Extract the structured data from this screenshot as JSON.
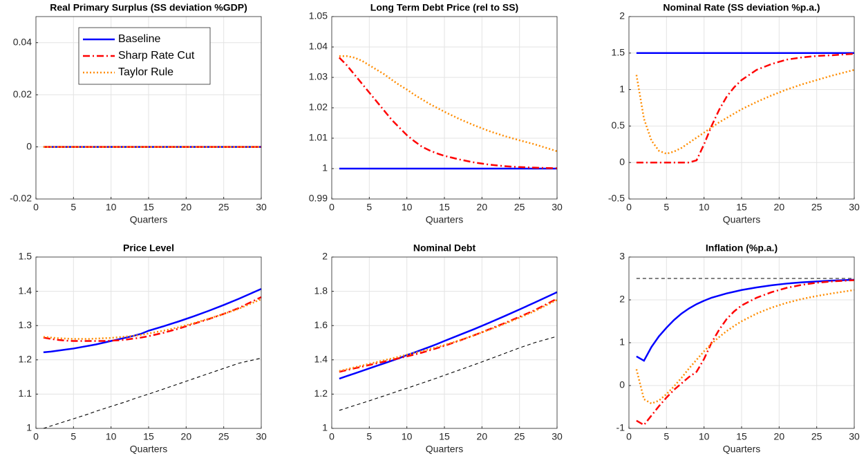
{
  "chart_data": [
    {
      "type": "line",
      "title": "Real Primary Surplus (SS deviation %GDP)",
      "x_label": "Quarters",
      "x": [
        1,
        2,
        3,
        4,
        5,
        6,
        7,
        8,
        9,
        10,
        11,
        12,
        13,
        14,
        15,
        17,
        19,
        21,
        23,
        25,
        27,
        30
      ],
      "xlim": [
        0,
        30
      ],
      "xticks": [
        0,
        5,
        10,
        15,
        20,
        25,
        30
      ],
      "ylim": [
        -0.02,
        0.05
      ],
      "yticks": [
        -0.02,
        0,
        0.02,
        0.04
      ],
      "grid": true,
      "legend": "upper left",
      "series": [
        {
          "name": "Baseline",
          "color": "#0000ff",
          "style": "solid",
          "values": [
            0,
            0,
            0,
            0,
            0,
            0,
            0,
            0,
            0,
            0,
            0,
            0,
            0,
            0,
            0,
            0,
            0,
            0,
            0,
            0,
            0,
            0
          ]
        },
        {
          "name": "Sharp Rate Cut",
          "color": "#ff0000",
          "style": "dashdot",
          "values": [
            0,
            0,
            0,
            0,
            0,
            0,
            0,
            0,
            0,
            0,
            0,
            0,
            0,
            0,
            0,
            0,
            0,
            0,
            0,
            0,
            0,
            0
          ]
        },
        {
          "name": "Taylor Rule",
          "color": "#ff8c00",
          "style": "dotted",
          "values": [
            0,
            0,
            0,
            0,
            0,
            0,
            0,
            0,
            0,
            0,
            0,
            0,
            0,
            0,
            0,
            0,
            0,
            0,
            0,
            0,
            0,
            0
          ]
        }
      ]
    },
    {
      "type": "line",
      "title": "Long Term Debt Price (rel to SS)",
      "x_label": "Quarters",
      "x": [
        1,
        2,
        3,
        4,
        5,
        6,
        7,
        8,
        9,
        10,
        11,
        12,
        13,
        14,
        15,
        17,
        19,
        21,
        23,
        25,
        27,
        30
      ],
      "xlim": [
        0,
        30
      ],
      "xticks": [
        0,
        5,
        10,
        15,
        20,
        25,
        30
      ],
      "ylim": [
        0.99,
        1.05
      ],
      "yticks": [
        0.99,
        1,
        1.01,
        1.02,
        1.03,
        1.04,
        1.05
      ],
      "grid": true,
      "series": [
        {
          "color": "#0000ff",
          "style": "solid",
          "values": [
            1,
            1,
            1,
            1,
            1,
            1,
            1,
            1,
            1,
            1,
            1,
            1,
            1,
            1,
            1,
            1,
            1,
            1,
            1,
            1,
            1,
            1
          ]
        },
        {
          "color": "#ff0000",
          "style": "dashdot",
          "values": [
            1.0365,
            1.034,
            1.031,
            1.028,
            1.025,
            1.022,
            1.019,
            1.016,
            1.0135,
            1.011,
            1.009,
            1.0072,
            1.006,
            1.005,
            1.0042,
            1.003,
            1.002,
            1.0013,
            1.0008,
            1.0005,
            1.0003,
            1.0001
          ]
        },
        {
          "color": "#ff8c00",
          "style": "dotted",
          "values": [
            1.037,
            1.037,
            1.0365,
            1.0355,
            1.034,
            1.0325,
            1.031,
            1.0292,
            1.0275,
            1.026,
            1.0243,
            1.0228,
            1.0213,
            1.02,
            1.0187,
            1.0163,
            1.0142,
            1.0123,
            1.0107,
            1.0093,
            1.008,
            1.0057
          ]
        }
      ]
    },
    {
      "type": "line",
      "title": "Nominal Rate (SS deviation %p.a.)",
      "x_label": "Quarters",
      "x": [
        1,
        2,
        3,
        4,
        5,
        6,
        7,
        8,
        9,
        10,
        11,
        12,
        13,
        14,
        15,
        17,
        19,
        21,
        23,
        25,
        27,
        30
      ],
      "xlim": [
        0,
        30
      ],
      "xticks": [
        0,
        5,
        10,
        15,
        20,
        25,
        30
      ],
      "ylim": [
        -0.5,
        2
      ],
      "yticks": [
        -0.5,
        0,
        0.5,
        1,
        1.5,
        2
      ],
      "grid": true,
      "series": [
        {
          "color": "#0000ff",
          "style": "solid",
          "values": [
            1.5,
            1.5,
            1.5,
            1.5,
            1.5,
            1.5,
            1.5,
            1.5,
            1.5,
            1.5,
            1.5,
            1.5,
            1.5,
            1.5,
            1.5,
            1.5,
            1.5,
            1.5,
            1.5,
            1.5,
            1.5,
            1.5
          ]
        },
        {
          "color": "#ff0000",
          "style": "dashdot",
          "values": [
            0,
            0,
            0,
            0,
            0,
            0,
            0,
            0,
            0.03,
            0.25,
            0.5,
            0.72,
            0.9,
            1.03,
            1.13,
            1.27,
            1.35,
            1.41,
            1.44,
            1.46,
            1.47,
            1.49
          ]
        },
        {
          "color": "#ff8c00",
          "style": "dotted",
          "values": [
            1.2,
            0.6,
            0.3,
            0.16,
            0.12,
            0.15,
            0.2,
            0.27,
            0.34,
            0.41,
            0.48,
            0.55,
            0.61,
            0.67,
            0.73,
            0.83,
            0.92,
            1.0,
            1.07,
            1.13,
            1.19,
            1.27
          ]
        }
      ]
    },
    {
      "type": "line",
      "title": "Price Level",
      "x_label": "Quarters",
      "x": [
        1,
        2,
        3,
        4,
        5,
        6,
        7,
        8,
        9,
        10,
        11,
        12,
        13,
        14,
        15,
        17,
        19,
        21,
        23,
        25,
        27,
        30
      ],
      "xlim": [
        0,
        30
      ],
      "xticks": [
        0,
        5,
        10,
        15,
        20,
        25,
        30
      ],
      "ylim": [
        1,
        1.5
      ],
      "yticks": [
        1,
        1.1,
        1.2,
        1.3,
        1.4,
        1.5
      ],
      "grid": true,
      "series": [
        {
          "color": "#0000ff",
          "style": "solid",
          "values": [
            1.222,
            1.224,
            1.227,
            1.23,
            1.233,
            1.237,
            1.241,
            1.245,
            1.25,
            1.255,
            1.26,
            1.265,
            1.27,
            1.276,
            1.285,
            1.298,
            1.312,
            1.327,
            1.343,
            1.36,
            1.378,
            1.407
          ]
        },
        {
          "color": "#ff0000",
          "style": "dashdot",
          "values": [
            1.265,
            1.261,
            1.258,
            1.256,
            1.255,
            1.255,
            1.255,
            1.255,
            1.255,
            1.256,
            1.257,
            1.259,
            1.262,
            1.265,
            1.269,
            1.279,
            1.291,
            1.305,
            1.319,
            1.334,
            1.351,
            1.383
          ]
        },
        {
          "color": "#ff8c00",
          "style": "dotted",
          "values": [
            1.267,
            1.265,
            1.263,
            1.262,
            1.261,
            1.261,
            1.261,
            1.262,
            1.263,
            1.264,
            1.266,
            1.268,
            1.27,
            1.273,
            1.277,
            1.285,
            1.295,
            1.307,
            1.32,
            1.334,
            1.349,
            1.377
          ]
        },
        {
          "color": "#000000",
          "style": "dashed",
          "values": [
            1.0,
            1.007,
            1.014,
            1.021,
            1.028,
            1.035,
            1.042,
            1.05,
            1.057,
            1.064,
            1.071,
            1.078,
            1.086,
            1.093,
            1.1,
            1.115,
            1.13,
            1.145,
            1.16,
            1.175,
            1.19,
            1.205
          ]
        }
      ]
    },
    {
      "type": "line",
      "title": "Nominal Debt",
      "x_label": "Quarters",
      "x": [
        1,
        2,
        3,
        4,
        5,
        6,
        7,
        8,
        9,
        10,
        11,
        12,
        13,
        14,
        15,
        17,
        19,
        21,
        23,
        25,
        27,
        30
      ],
      "xlim": [
        0,
        30
      ],
      "xticks": [
        0,
        5,
        10,
        15,
        20,
        25,
        30
      ],
      "ylim": [
        1,
        2
      ],
      "yticks": [
        1,
        1.2,
        1.4,
        1.6,
        1.8,
        2
      ],
      "grid": true,
      "series": [
        {
          "color": "#0000ff",
          "style": "solid",
          "values": [
            1.29,
            1.305,
            1.32,
            1.335,
            1.35,
            1.365,
            1.38,
            1.395,
            1.41,
            1.428,
            1.443,
            1.459,
            1.475,
            1.492,
            1.51,
            1.545,
            1.58,
            1.617,
            1.655,
            1.694,
            1.734,
            1.795
          ]
        },
        {
          "color": "#ff0000",
          "style": "dashdot",
          "values": [
            1.33,
            1.34,
            1.35,
            1.36,
            1.37,
            1.38,
            1.39,
            1.4,
            1.41,
            1.42,
            1.431,
            1.442,
            1.455,
            1.468,
            1.482,
            1.512,
            1.544,
            1.579,
            1.614,
            1.651,
            1.689,
            1.757
          ]
        },
        {
          "color": "#ff8c00",
          "style": "dotted",
          "values": [
            1.335,
            1.345,
            1.356,
            1.366,
            1.377,
            1.387,
            1.398,
            1.408,
            1.419,
            1.43,
            1.44,
            1.451,
            1.462,
            1.474,
            1.486,
            1.514,
            1.544,
            1.576,
            1.61,
            1.646,
            1.684,
            1.75
          ]
        },
        {
          "color": "#000000",
          "style": "dashed",
          "values": [
            1.105,
            1.119,
            1.133,
            1.147,
            1.161,
            1.176,
            1.19,
            1.205,
            1.22,
            1.234,
            1.249,
            1.264,
            1.279,
            1.294,
            1.31,
            1.341,
            1.372,
            1.404,
            1.437,
            1.47,
            1.5,
            1.537
          ]
        }
      ]
    },
    {
      "type": "line",
      "title": "Inflation (%p.a.)",
      "x_label": "Quarters",
      "x": [
        1,
        2,
        3,
        4,
        5,
        6,
        7,
        8,
        9,
        10,
        11,
        12,
        13,
        14,
        15,
        17,
        19,
        21,
        23,
        25,
        27,
        30
      ],
      "xlim": [
        0,
        30
      ],
      "xticks": [
        0,
        5,
        10,
        15,
        20,
        25,
        30
      ],
      "ylim": [
        -1,
        3
      ],
      "yticks": [
        -1,
        0,
        1,
        2,
        3
      ],
      "grid": true,
      "series": [
        {
          "color": "#0000ff",
          "style": "solid",
          "values": [
            0.68,
            0.58,
            0.9,
            1.15,
            1.35,
            1.53,
            1.68,
            1.8,
            1.9,
            1.98,
            2.05,
            2.1,
            2.15,
            2.19,
            2.23,
            2.29,
            2.34,
            2.38,
            2.41,
            2.43,
            2.45,
            2.47
          ]
        },
        {
          "color": "#ff0000",
          "style": "dashdot",
          "values": [
            -0.82,
            -0.92,
            -0.7,
            -0.48,
            -0.28,
            -0.1,
            0.05,
            0.2,
            0.32,
            0.62,
            1.0,
            1.3,
            1.55,
            1.73,
            1.87,
            2.05,
            2.18,
            2.28,
            2.35,
            2.4,
            2.43,
            2.46
          ]
        },
        {
          "color": "#ff8c00",
          "style": "dotted",
          "values": [
            0.38,
            -0.32,
            -0.42,
            -0.35,
            -0.2,
            -0.02,
            0.18,
            0.4,
            0.6,
            0.8,
            0.98,
            1.13,
            1.27,
            1.39,
            1.5,
            1.68,
            1.82,
            1.93,
            2.02,
            2.09,
            2.15,
            2.23
          ]
        },
        {
          "color": "#000000",
          "style": "dashed",
          "values": [
            2.5,
            2.5,
            2.5,
            2.5,
            2.5,
            2.5,
            2.5,
            2.5,
            2.5,
            2.5,
            2.5,
            2.5,
            2.5,
            2.5,
            2.5,
            2.5,
            2.5,
            2.5,
            2.5,
            2.5,
            2.5,
            2.5
          ]
        }
      ]
    }
  ]
}
